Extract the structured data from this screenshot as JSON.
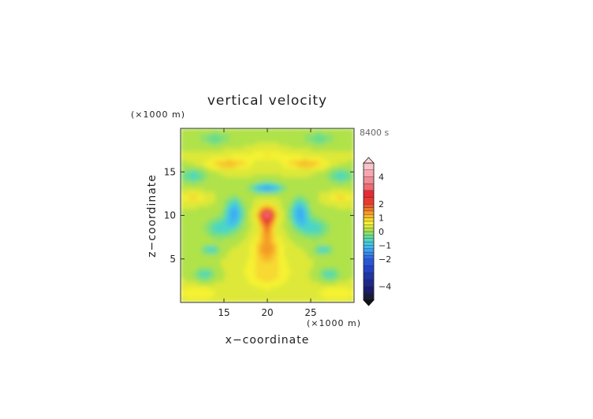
{
  "chart_data": {
    "type": "heatmap",
    "title": "vertical velocity",
    "time_label": "8400 s",
    "xlabel": "x−coordinate",
    "ylabel": "z−coordinate",
    "x_unit": "(×1000 m)",
    "y_unit": "(×1000 m)",
    "xlim": [
      10,
      30
    ],
    "ylim": [
      0,
      20
    ],
    "x_ticks": [
      15,
      20,
      25
    ],
    "y_ticks": [
      5,
      10,
      15
    ],
    "colorbar": {
      "tick_labels": [
        "4",
        "2",
        "1",
        "0",
        "−1",
        "−2",
        "−4"
      ],
      "tick_values": [
        4,
        2,
        1,
        0,
        -1,
        -2,
        -4
      ],
      "levels": [
        -5,
        -4.5,
        -4,
        -3.5,
        -3,
        -2.5,
        -2,
        -1.75,
        -1.5,
        -1.25,
        -1,
        -0.75,
        -0.5,
        -0.25,
        0,
        0.25,
        0.5,
        0.75,
        1,
        1.25,
        1.5,
        1.75,
        2,
        2.5,
        3,
        3.5,
        4,
        4.5,
        5
      ],
      "colors": [
        "#1a1a3a",
        "#1c1c6e",
        "#1e2a8a",
        "#1f35a8",
        "#2442c4",
        "#2a55d6",
        "#2f6ee6",
        "#3388ee",
        "#3aa0f0",
        "#40b8f0",
        "#44c8e0",
        "#4cd6c8",
        "#66dd8c",
        "#8ee06a",
        "#b0e24a",
        "#dde838",
        "#f5f232",
        "#f8d830",
        "#f7b82a",
        "#f49a28",
        "#f07828",
        "#ee5a2a",
        "#ea3a30",
        "#e82a36",
        "#ee6c74",
        "#f28c94",
        "#f6a8b0",
        "#fac4c8"
      ]
    },
    "features": [
      {
        "kind": "updraft-core",
        "x": 20,
        "z": 10,
        "w": 3.3
      },
      {
        "kind": "downdraft",
        "x": 20,
        "z": 13,
        "w": -1.4
      },
      {
        "kind": "downdraft",
        "x": 16,
        "z": 10,
        "w": -1.5
      },
      {
        "kind": "downdraft",
        "x": 24,
        "z": 10,
        "w": -1.5
      },
      {
        "kind": "updraft-band",
        "x": 20,
        "z": 15.8,
        "w": 0.9
      },
      {
        "kind": "updraft-column",
        "x": 20,
        "z": 6,
        "w": 1.0
      }
    ]
  }
}
